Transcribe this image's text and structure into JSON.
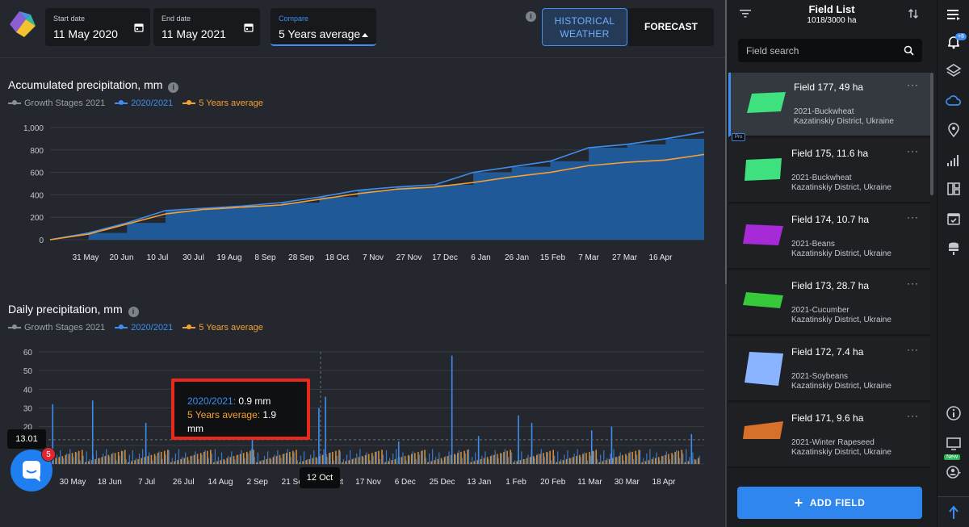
{
  "header": {
    "start_label": "Start date",
    "start_value": "11 May 2020",
    "end_label": "End date",
    "end_value": "11 May 2021",
    "compare_label": "Compare",
    "compare_value": "5 Years average",
    "info": "i",
    "historical_line1": "HISTORICAL",
    "historical_line2": "WEATHER",
    "forecast": "FORECAST"
  },
  "legend": {
    "growth": "Growth Stages 2021",
    "current": "2020/2021",
    "average": "5 Years average"
  },
  "colors": {
    "current": "#3d8ef0",
    "average": "#f5a032",
    "growth": "#8a9097",
    "fill": "#1f5fa3"
  },
  "accumulated": {
    "title": "Accumulated precipitation, mm",
    "chart_data": {
      "type": "area",
      "ylim": [
        0,
        1000
      ],
      "y_ticks": [
        "0",
        "200",
        "400",
        "600",
        "800",
        "1,000"
      ],
      "x_ticks": [
        "31 May",
        "20 Jun",
        "10 Jul",
        "30 Jul",
        "19 Aug",
        "8 Sep",
        "28 Sep",
        "18 Oct",
        "7 Nov",
        "27 Nov",
        "17 Dec",
        "6 Jan",
        "26 Jan",
        "15 Feb",
        "7 Mar",
        "27 Mar",
        "16 Apr"
      ],
      "series": [
        {
          "name": "2020/2021",
          "values": [
            0,
            60,
            150,
            260,
            280,
            300,
            330,
            380,
            440,
            470,
            490,
            600,
            650,
            700,
            820,
            850,
            900,
            960
          ]
        },
        {
          "name": "5 Years average",
          "values": [
            0,
            50,
            140,
            230,
            270,
            290,
            310,
            360,
            410,
            450,
            470,
            510,
            560,
            600,
            660,
            690,
            710,
            760
          ]
        }
      ]
    }
  },
  "daily": {
    "title": "Daily precipitation, mm",
    "chart_data": {
      "type": "bar",
      "ylim": [
        0,
        60
      ],
      "y_ticks": [
        "0",
        "10",
        "20",
        "30",
        "40",
        "50",
        "60"
      ],
      "x_ticks": [
        "30 May",
        "18 Jun",
        "7 Jul",
        "26 Jul",
        "14 Aug",
        "2 Sep",
        "21 Sep",
        "29 Oct",
        "17 Nov",
        "6 Dec",
        "25 Dec",
        "13 Jan",
        "1 Feb",
        "20 Feb",
        "11 Mar",
        "30 Mar",
        "18 Apr"
      ],
      "peaks": [
        {
          "x": 0.02,
          "v": 32
        },
        {
          "x": 0.08,
          "v": 34
        },
        {
          "x": 0.16,
          "v": 22
        },
        {
          "x": 0.32,
          "v": 15
        },
        {
          "x": 0.42,
          "v": 30
        },
        {
          "x": 0.43,
          "v": 36
        },
        {
          "x": 0.54,
          "v": 12
        },
        {
          "x": 0.62,
          "v": 58
        },
        {
          "x": 0.66,
          "v": 15
        },
        {
          "x": 0.72,
          "v": 26
        },
        {
          "x": 0.74,
          "v": 22
        },
        {
          "x": 0.83,
          "v": 18
        },
        {
          "x": 0.86,
          "v": 20
        },
        {
          "x": 0.98,
          "v": 16
        }
      ]
    }
  },
  "tooltip": {
    "current_label": "2020/2021:",
    "current_value": "0.9 mm",
    "average_label": "5 Years average:",
    "average_value": "1.9 mm"
  },
  "cursor_y": "13.01",
  "cursor_x": "12 Oct",
  "chat_badge": "5",
  "panel": {
    "title": "Field List",
    "subtitle": "1018/3000 ha",
    "search_placeholder": "Field search",
    "add_field": "ADD FIELD",
    "pro": "Pro",
    "fields": [
      {
        "name": "Field 177, 49 ha",
        "crop": "2021-Buckwheat",
        "location": "Kazatinskiy District, Ukraine",
        "color": "#3fe07e"
      },
      {
        "name": "Field 175, 11.6 ha",
        "crop": "2021-Buckwheat",
        "location": "Kazatinskiy District, Ukraine",
        "color": "#3fe07e"
      },
      {
        "name": "Field 174, 10.7 ha",
        "crop": "2021-Beans",
        "location": "Kazatinskiy District, Ukraine",
        "color": "#a62ad6"
      },
      {
        "name": "Field 173, 28.7 ha",
        "crop": "2021-Cucumber",
        "location": "Kazatinskiy District, Ukraine",
        "color": "#36c93a"
      },
      {
        "name": "Field 172, 7.4 ha",
        "crop": "2021-Soybeans",
        "location": "Kazatinskiy District, Ukraine",
        "color": "#8ab4ff"
      },
      {
        "name": "Field 171, 9.6 ha",
        "crop": "2021-Winter Rapeseed",
        "location": "Kazatinskiy District, Ukraine",
        "color": "#d7702a"
      }
    ]
  },
  "rail": {
    "notif_badge": "+6",
    "new_badge": "New"
  }
}
